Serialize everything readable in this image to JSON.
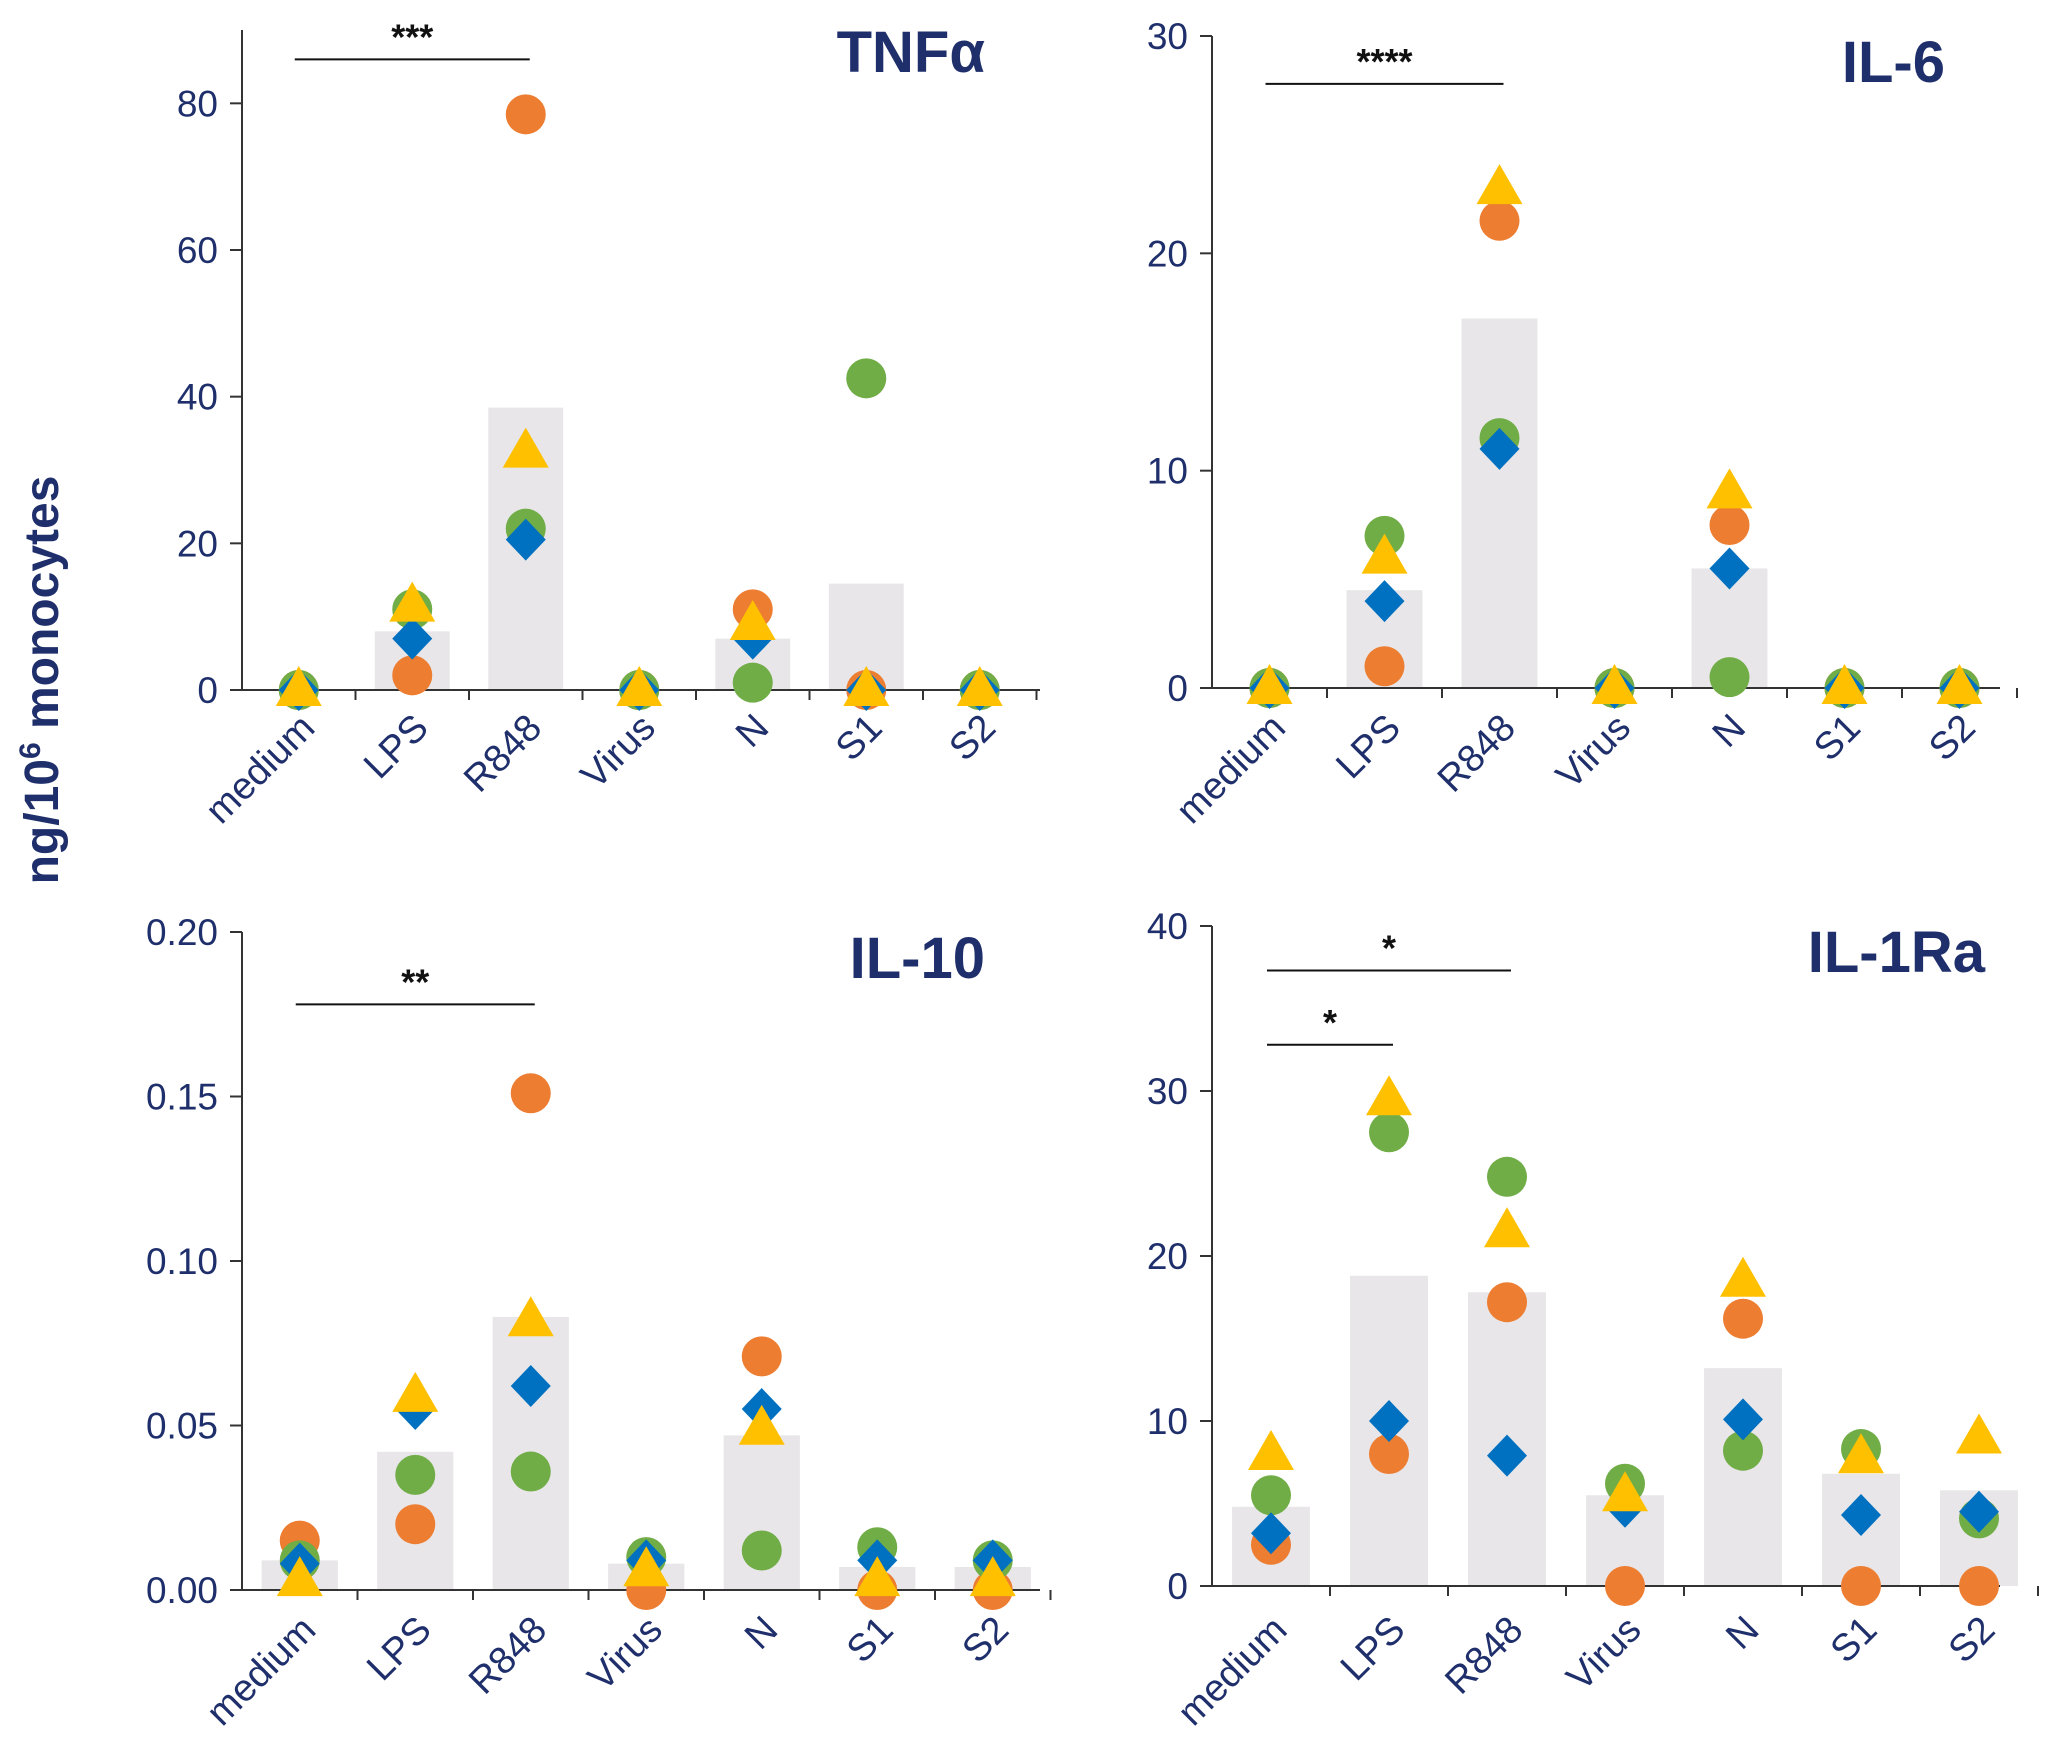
{
  "figure": {
    "y_axis_label_prefix": "ng/10",
    "y_axis_label_superscript": "6",
    "y_axis_label_suffix": " monocytes"
  },
  "colors": {
    "bar": "#e8e6e8",
    "axis": "#333333",
    "text": "#1f2f6b",
    "circle_orange": "#ed7d31",
    "circle_green": "#70ad47",
    "diamond_blue": "#0070c0",
    "triangle_yellow": "#ffc000"
  },
  "chart_data": [
    {
      "type": "bar",
      "title": "TNFα",
      "ylabel": "ng/10⁶ monocytes",
      "categories": [
        "medium",
        "LPS",
        "R848",
        "Virus",
        "N",
        "S1",
        "S2"
      ],
      "ylim": [
        0,
        90
      ],
      "yticks": [
        0,
        20,
        40,
        60,
        80
      ],
      "tick_labels": [
        "0",
        "20",
        "40",
        "60",
        "80"
      ],
      "values": [
        0,
        8,
        38.5,
        0,
        7,
        14.5,
        0
      ],
      "points": {
        "orange_circle": [
          0,
          2,
          78.5,
          0,
          11,
          0,
          0
        ],
        "green_circle": [
          0,
          11,
          22,
          0,
          1,
          42.5,
          0
        ],
        "blue_diamond": [
          0,
          7,
          20.5,
          0,
          7,
          0,
          0
        ],
        "yellow_triangle": [
          0,
          11.5,
          32.5,
          0,
          9,
          0,
          0
        ]
      },
      "significance": [
        {
          "from": "medium",
          "to": "R848",
          "label": "***",
          "level": 86
        }
      ]
    },
    {
      "type": "bar",
      "title": "IL-6",
      "ylabel": "ng/10⁶ monocytes",
      "categories": [
        "medium",
        "LPS",
        "R848",
        "Virus",
        "N",
        "S1",
        "S2"
      ],
      "ylim": [
        0,
        30
      ],
      "yticks": [
        0,
        10,
        20,
        30
      ],
      "tick_labels": [
        "0",
        "10",
        "20",
        "30"
      ],
      "values": [
        0,
        4.5,
        17,
        0,
        5.5,
        0,
        0
      ],
      "points": {
        "orange_circle": [
          0,
          1,
          21.5,
          0,
          7.5,
          0,
          0
        ],
        "green_circle": [
          0,
          7,
          11.5,
          0,
          0.5,
          0,
          0
        ],
        "blue_diamond": [
          0,
          4,
          11,
          0,
          5.5,
          0,
          0
        ],
        "yellow_triangle": [
          0,
          6,
          23,
          0,
          9,
          0,
          0
        ]
      },
      "significance": [
        {
          "from": "medium",
          "to": "R848",
          "label": "****",
          "level": 27.8
        }
      ]
    },
    {
      "type": "bar",
      "title": "IL-10",
      "ylabel": "ng/10⁶ monocytes",
      "categories": [
        "medium",
        "LPS",
        "R848",
        "Virus",
        "N",
        "S1",
        "S2"
      ],
      "ylim": [
        0,
        0.2
      ],
      "yticks": [
        0,
        0.05,
        0.1,
        0.15,
        0.2
      ],
      "tick_labels": [
        "0.00",
        "0.05",
        "0.10",
        "0.15",
        "0.20"
      ],
      "values": [
        0.009,
        0.042,
        0.083,
        0.008,
        0.047,
        0.007,
        0.007
      ],
      "points": {
        "orange_circle": [
          0.015,
          0.02,
          0.151,
          0,
          0.071,
          0,
          0
        ],
        "green_circle": [
          0.009,
          0.035,
          0.036,
          0.01,
          0.012,
          0.013,
          0.009
        ],
        "blue_diamond": [
          0.008,
          0.055,
          0.062,
          0.009,
          0.055,
          0.009,
          0.009
        ],
        "yellow_triangle": [
          0.003,
          0.059,
          0.082,
          0.006,
          0.049,
          0.003,
          0.003
        ]
      },
      "significance": [
        {
          "from": "medium",
          "to": "R848",
          "label": "**",
          "level": 0.178
        }
      ]
    },
    {
      "type": "bar",
      "title": "IL-1Ra",
      "ylabel": "ng/10⁶ monocytes",
      "categories": [
        "medium",
        "LPS",
        "R848",
        "Virus",
        "N",
        "S1",
        "S2"
      ],
      "ylim": [
        0,
        40
      ],
      "yticks": [
        0,
        10,
        20,
        30,
        40
      ],
      "tick_labels": [
        "0",
        "10",
        "20",
        "30",
        "40"
      ],
      "values": [
        4.8,
        18.8,
        17.8,
        5.5,
        13.2,
        6.8,
        5.8
      ],
      "points": {
        "orange_circle": [
          2.5,
          8,
          17.2,
          0,
          16.2,
          0,
          0
        ],
        "green_circle": [
          5.5,
          27.5,
          24.8,
          6.2,
          8.2,
          8.3,
          4.1
        ],
        "blue_diamond": [
          3.2,
          10,
          7.9,
          4.8,
          10.1,
          4.3,
          4.5
        ],
        "yellow_triangle": [
          8,
          29.5,
          21.5,
          5.5,
          18.5,
          7.8,
          9
        ]
      },
      "significance": [
        {
          "from": "medium",
          "to": "R848",
          "label": "*",
          "level": 37.3
        },
        {
          "from": "medium",
          "to": "LPS",
          "label": "*",
          "level": 32.8
        }
      ]
    }
  ]
}
